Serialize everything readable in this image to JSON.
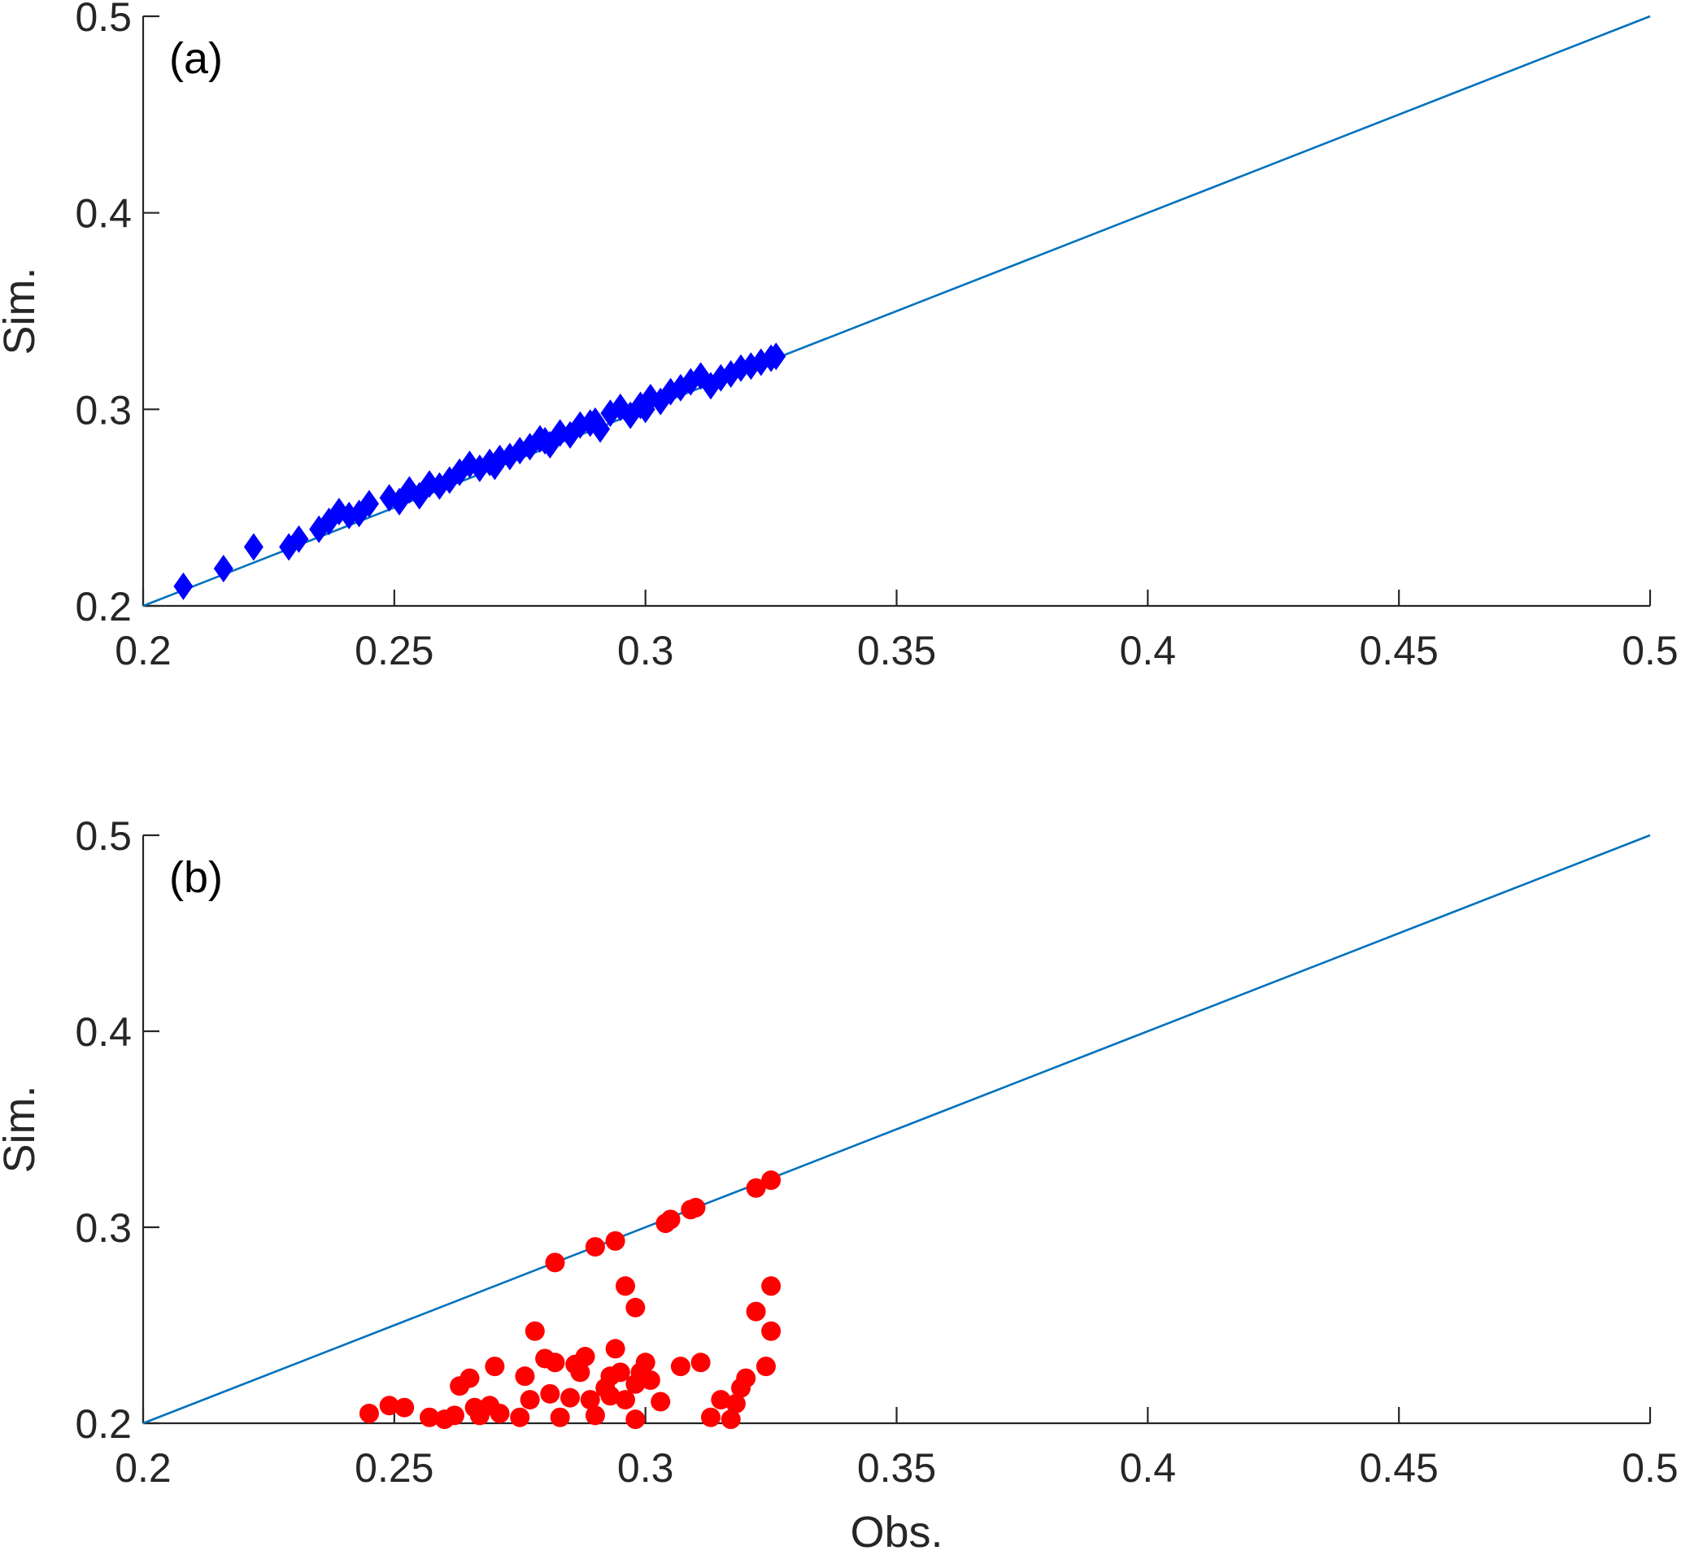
{
  "chart_data": [
    {
      "type": "scatter",
      "panel_label": "(a)",
      "xlabel": "",
      "ylabel": "Sim.",
      "xlim": [
        0.2,
        0.5
      ],
      "ylim": [
        0.2,
        0.5
      ],
      "xticks": [
        "0.2",
        "0.25",
        "0.3",
        "0.35",
        "0.4",
        "0.45",
        "0.5"
      ],
      "yticks": [
        "0.2",
        "0.3",
        "0.4",
        "0.5"
      ],
      "grid": false,
      "marker": "diamond",
      "marker_color": "#0000FF",
      "line_color": "#0072BD",
      "reference_line": [
        [
          0.2,
          0.2
        ],
        [
          0.5,
          0.5
        ]
      ],
      "points": [
        [
          0.208,
          0.21
        ],
        [
          0.216,
          0.219
        ],
        [
          0.222,
          0.23
        ],
        [
          0.229,
          0.23
        ],
        [
          0.231,
          0.234
        ],
        [
          0.235,
          0.239
        ],
        [
          0.237,
          0.243
        ],
        [
          0.239,
          0.248
        ],
        [
          0.241,
          0.246
        ],
        [
          0.243,
          0.247
        ],
        [
          0.245,
          0.252
        ],
        [
          0.249,
          0.255
        ],
        [
          0.251,
          0.253
        ],
        [
          0.253,
          0.259
        ],
        [
          0.255,
          0.256
        ],
        [
          0.257,
          0.262
        ],
        [
          0.259,
          0.261
        ],
        [
          0.261,
          0.264
        ],
        [
          0.263,
          0.268
        ],
        [
          0.265,
          0.272
        ],
        [
          0.267,
          0.27
        ],
        [
          0.269,
          0.273
        ],
        [
          0.271,
          0.275
        ],
        [
          0.273,
          0.276
        ],
        [
          0.275,
          0.279
        ],
        [
          0.277,
          0.281
        ],
        [
          0.279,
          0.285
        ],
        [
          0.281,
          0.282
        ],
        [
          0.283,
          0.288
        ],
        [
          0.285,
          0.287
        ],
        [
          0.287,
          0.292
        ],
        [
          0.289,
          0.293
        ],
        [
          0.291,
          0.29
        ],
        [
          0.293,
          0.298
        ],
        [
          0.295,
          0.301
        ],
        [
          0.297,
          0.297
        ],
        [
          0.299,
          0.302
        ],
        [
          0.301,
          0.306
        ],
        [
          0.303,
          0.304
        ],
        [
          0.305,
          0.309
        ],
        [
          0.307,
          0.311
        ],
        [
          0.309,
          0.314
        ],
        [
          0.311,
          0.317
        ],
        [
          0.313,
          0.312
        ],
        [
          0.315,
          0.316
        ],
        [
          0.317,
          0.318
        ],
        [
          0.319,
          0.321
        ],
        [
          0.321,
          0.322
        ],
        [
          0.323,
          0.324
        ],
        [
          0.325,
          0.326
        ],
        [
          0.326,
          0.327
        ],
        [
          0.3,
          0.3
        ],
        [
          0.29,
          0.294
        ],
        [
          0.28,
          0.284
        ],
        [
          0.27,
          0.271
        ]
      ]
    },
    {
      "type": "scatter",
      "panel_label": "(b)",
      "xlabel": "Obs.",
      "ylabel": "Sim.",
      "xlim": [
        0.2,
        0.5
      ],
      "ylim": [
        0.2,
        0.5
      ],
      "xticks": [
        "0.2",
        "0.25",
        "0.3",
        "0.35",
        "0.4",
        "0.45",
        "0.5"
      ],
      "yticks": [
        "0.2",
        "0.3",
        "0.4",
        "0.5"
      ],
      "grid": false,
      "marker": "circle",
      "marker_color": "#FF0000",
      "line_color": "#0072BD",
      "reference_line": [
        [
          0.2,
          0.2
        ],
        [
          0.5,
          0.5
        ]
      ],
      "points": [
        [
          0.245,
          0.205
        ],
        [
          0.249,
          0.209
        ],
        [
          0.252,
          0.208
        ],
        [
          0.257,
          0.203
        ],
        [
          0.26,
          0.202
        ],
        [
          0.262,
          0.204
        ],
        [
          0.263,
          0.219
        ],
        [
          0.265,
          0.223
        ],
        [
          0.266,
          0.208
        ],
        [
          0.267,
          0.204
        ],
        [
          0.269,
          0.209
        ],
        [
          0.27,
          0.229
        ],
        [
          0.271,
          0.205
        ],
        [
          0.275,
          0.203
        ],
        [
          0.276,
          0.224
        ],
        [
          0.277,
          0.212
        ],
        [
          0.278,
          0.247
        ],
        [
          0.28,
          0.233
        ],
        [
          0.281,
          0.215
        ],
        [
          0.282,
          0.231
        ],
        [
          0.283,
          0.203
        ],
        [
          0.282,
          0.282
        ],
        [
          0.285,
          0.213
        ],
        [
          0.286,
          0.23
        ],
        [
          0.287,
          0.226
        ],
        [
          0.288,
          0.234
        ],
        [
          0.289,
          0.212
        ],
        [
          0.29,
          0.204
        ],
        [
          0.29,
          0.29
        ],
        [
          0.292,
          0.218
        ],
        [
          0.293,
          0.224
        ],
        [
          0.293,
          0.214
        ],
        [
          0.294,
          0.238
        ],
        [
          0.294,
          0.293
        ],
        [
          0.295,
          0.226
        ],
        [
          0.296,
          0.212
        ],
        [
          0.296,
          0.27
        ],
        [
          0.298,
          0.259
        ],
        [
          0.298,
          0.22
        ],
        [
          0.298,
          0.202
        ],
        [
          0.299,
          0.226
        ],
        [
          0.3,
          0.231
        ],
        [
          0.301,
          0.222
        ],
        [
          0.303,
          0.211
        ],
        [
          0.304,
          0.302
        ],
        [
          0.305,
          0.304
        ],
        [
          0.307,
          0.229
        ],
        [
          0.309,
          0.309
        ],
        [
          0.31,
          0.31
        ],
        [
          0.311,
          0.231
        ],
        [
          0.313,
          0.203
        ],
        [
          0.315,
          0.212
        ],
        [
          0.317,
          0.202
        ],
        [
          0.318,
          0.21
        ],
        [
          0.319,
          0.218
        ],
        [
          0.32,
          0.223
        ],
        [
          0.322,
          0.257
        ],
        [
          0.322,
          0.32
        ],
        [
          0.324,
          0.229
        ],
        [
          0.325,
          0.247
        ],
        [
          0.325,
          0.27
        ],
        [
          0.325,
          0.324
        ]
      ]
    }
  ]
}
